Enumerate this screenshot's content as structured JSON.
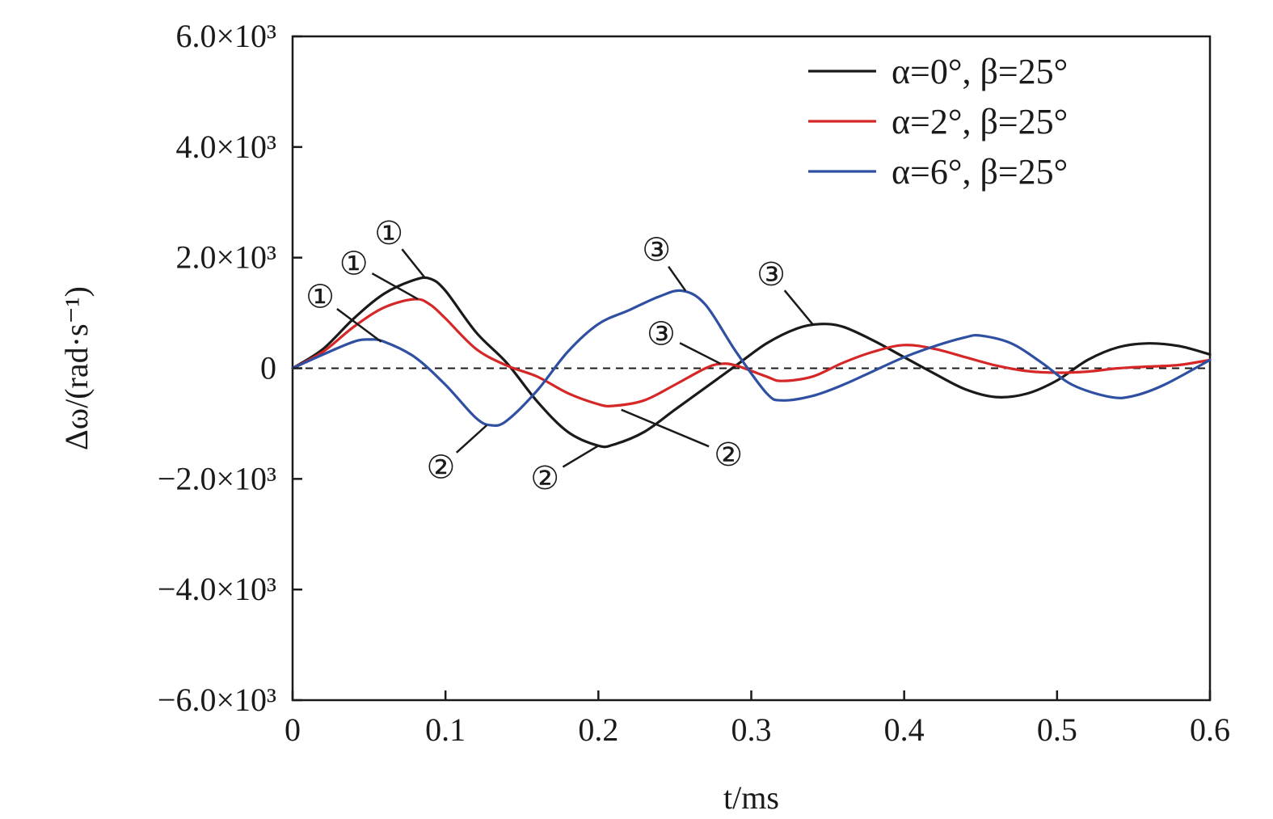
{
  "chart_data": {
    "type": "line",
    "title": "",
    "xlabel": "t/ms",
    "ylabel": "Δω/(rad·s⁻¹)",
    "xlim": [
      0,
      0.6
    ],
    "ylim": [
      -6000,
      6000
    ],
    "x_ticks": [
      {
        "value": 0,
        "label": "0"
      },
      {
        "value": 0.1,
        "label": "0.1"
      },
      {
        "value": 0.2,
        "label": "0.2"
      },
      {
        "value": 0.3,
        "label": "0.3"
      },
      {
        "value": 0.4,
        "label": "0.4"
      },
      {
        "value": 0.5,
        "label": "0.5"
      },
      {
        "value": 0.6,
        "label": "0.6"
      }
    ],
    "y_ticks": [
      {
        "value": 6000,
        "label": "6.0×10³"
      },
      {
        "value": 4000,
        "label": "4.0×10³"
      },
      {
        "value": 2000,
        "label": "2.0×10³"
      },
      {
        "value": 0,
        "label": "0"
      },
      {
        "value": -2000,
        "label": "−2.0×10³"
      },
      {
        "value": -4000,
        "label": "−4.0×10³"
      },
      {
        "value": -6000,
        "label": "−6.0×10³"
      }
    ],
    "grid": false,
    "zero_line": "dashed",
    "legend_position": "top-right",
    "series": [
      {
        "name": "α=0°, β=25°",
        "color": "#1a1a1a",
        "points": [
          [
            0,
            0
          ],
          [
            0.02,
            350
          ],
          [
            0.04,
            900
          ],
          [
            0.06,
            1350
          ],
          [
            0.08,
            1600
          ],
          [
            0.09,
            1620
          ],
          [
            0.1,
            1400
          ],
          [
            0.12,
            650
          ],
          [
            0.14,
            100
          ],
          [
            0.16,
            -600
          ],
          [
            0.18,
            -1150
          ],
          [
            0.2,
            -1400
          ],
          [
            0.21,
            -1380
          ],
          [
            0.23,
            -1150
          ],
          [
            0.25,
            -750
          ],
          [
            0.27,
            -350
          ],
          [
            0.29,
            50
          ],
          [
            0.31,
            450
          ],
          [
            0.33,
            720
          ],
          [
            0.345,
            800
          ],
          [
            0.36,
            750
          ],
          [
            0.38,
            500
          ],
          [
            0.4,
            200
          ],
          [
            0.42,
            -100
          ],
          [
            0.44,
            -380
          ],
          [
            0.46,
            -520
          ],
          [
            0.48,
            -460
          ],
          [
            0.5,
            -220
          ],
          [
            0.52,
            150
          ],
          [
            0.54,
            380
          ],
          [
            0.56,
            450
          ],
          [
            0.58,
            400
          ],
          [
            0.6,
            250
          ]
        ]
      },
      {
        "name": "α=2°, β=25°",
        "color": "#d62728",
        "points": [
          [
            0,
            0
          ],
          [
            0.02,
            300
          ],
          [
            0.04,
            750
          ],
          [
            0.06,
            1100
          ],
          [
            0.08,
            1250
          ],
          [
            0.09,
            1150
          ],
          [
            0.1,
            900
          ],
          [
            0.12,
            350
          ],
          [
            0.14,
            50
          ],
          [
            0.16,
            -150
          ],
          [
            0.18,
            -450
          ],
          [
            0.2,
            -650
          ],
          [
            0.21,
            -680
          ],
          [
            0.23,
            -580
          ],
          [
            0.25,
            -300
          ],
          [
            0.27,
            0
          ],
          [
            0.28,
            80
          ],
          [
            0.29,
            50
          ],
          [
            0.31,
            -150
          ],
          [
            0.32,
            -230
          ],
          [
            0.34,
            -150
          ],
          [
            0.36,
            100
          ],
          [
            0.38,
            300
          ],
          [
            0.4,
            420
          ],
          [
            0.42,
            350
          ],
          [
            0.44,
            200
          ],
          [
            0.46,
            50
          ],
          [
            0.48,
            -50
          ],
          [
            0.5,
            -80
          ],
          [
            0.52,
            -60
          ],
          [
            0.54,
            0
          ],
          [
            0.56,
            30
          ],
          [
            0.58,
            60
          ],
          [
            0.6,
            150
          ]
        ]
      },
      {
        "name": "α=6°, β=25°",
        "color": "#2f4fa2",
        "points": [
          [
            0,
            0
          ],
          [
            0.02,
            250
          ],
          [
            0.04,
            480
          ],
          [
            0.05,
            520
          ],
          [
            0.06,
            480
          ],
          [
            0.08,
            200
          ],
          [
            0.1,
            -300
          ],
          [
            0.12,
            -900
          ],
          [
            0.13,
            -1030
          ],
          [
            0.14,
            -950
          ],
          [
            0.16,
            -400
          ],
          [
            0.18,
            300
          ],
          [
            0.2,
            800
          ],
          [
            0.22,
            1050
          ],
          [
            0.24,
            1300
          ],
          [
            0.255,
            1400
          ],
          [
            0.27,
            1150
          ],
          [
            0.29,
            300
          ],
          [
            0.31,
            -450
          ],
          [
            0.32,
            -580
          ],
          [
            0.34,
            -500
          ],
          [
            0.36,
            -300
          ],
          [
            0.38,
            -50
          ],
          [
            0.4,
            200
          ],
          [
            0.42,
            400
          ],
          [
            0.44,
            560
          ],
          [
            0.45,
            590
          ],
          [
            0.47,
            450
          ],
          [
            0.49,
            100
          ],
          [
            0.51,
            -300
          ],
          [
            0.535,
            -520
          ],
          [
            0.55,
            -500
          ],
          [
            0.57,
            -300
          ],
          [
            0.6,
            150
          ]
        ]
      }
    ],
    "annotations": [
      {
        "text": "①",
        "at": [
          0.087,
          1620
        ],
        "label_at": [
          0.063,
          2450
        ]
      },
      {
        "text": "①",
        "at": [
          0.082,
          1250
        ],
        "label_at": [
          0.04,
          1900
        ]
      },
      {
        "text": "①",
        "at": [
          0.058,
          480
        ],
        "label_at": [
          0.018,
          1300
        ]
      },
      {
        "text": "②",
        "at": [
          0.127,
          -1030
        ],
        "label_at": [
          0.097,
          -1780
        ]
      },
      {
        "text": "②",
        "at": [
          0.2,
          -1400
        ],
        "label_at": [
          0.165,
          -1980
        ]
      },
      {
        "text": "②",
        "at": [
          0.215,
          -750
        ],
        "label_at": [
          0.285,
          -1560
        ]
      },
      {
        "text": "③",
        "at": [
          0.257,
          1400
        ],
        "label_at": [
          0.238,
          2150
        ]
      },
      {
        "text": "③",
        "at": [
          0.34,
          800
        ],
        "label_at": [
          0.313,
          1700
        ]
      },
      {
        "text": "③",
        "at": [
          0.28,
          80
        ],
        "label_at": [
          0.241,
          630
        ]
      }
    ]
  }
}
